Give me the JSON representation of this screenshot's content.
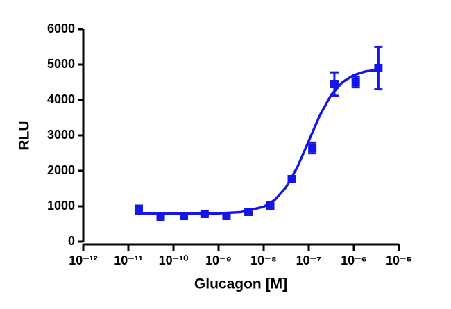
{
  "chart_data": {
    "type": "scatter",
    "x_label": "Glucagon [M]",
    "y_label": "RLU",
    "xscale": "log",
    "xlim": [
      1e-12,
      1e-05
    ],
    "xticks": [
      {
        "value": 1e-12,
        "label": "10⁻¹²"
      },
      {
        "value": 1e-11,
        "label": "10⁻¹¹"
      },
      {
        "value": 1e-10,
        "label": "10⁻¹⁰"
      },
      {
        "value": 1e-09,
        "label": "10⁻⁹"
      },
      {
        "value": 1e-08,
        "label": "10⁻⁸"
      },
      {
        "value": 1e-07,
        "label": "10⁻⁷"
      },
      {
        "value": 1e-06,
        "label": "10⁻⁶"
      },
      {
        "value": 1e-05,
        "label": "10⁻⁵"
      }
    ],
    "ylim": [
      0,
      6000
    ],
    "yticks": [
      0,
      1000,
      2000,
      3000,
      4000,
      5000,
      6000
    ],
    "series": [
      {
        "color": "#1515e6",
        "marker": "square",
        "x": [
          1.7e-11,
          5.2e-11,
          1.7e-10,
          4.9e-10,
          1.5e-09,
          4.6e-09,
          1.4e-08,
          4.2e-08,
          1.2e-07,
          3.7e-07,
          1.1e-06,
          3.5e-06
        ],
        "values": [
          900,
          706,
          725,
          784,
          725,
          843,
          1020,
          1765,
          2647,
          4451,
          4510,
          4902
        ],
        "errors": [
          120,
          40,
          70,
          30,
          30,
          30,
          30,
          40,
          150,
          330,
          150,
          600
        ]
      },
      {
        "color": "#1515e6",
        "marker": "line",
        "x": [
          1.7e-11,
          1e-10,
          1e-09,
          3.16e-09,
          1e-08,
          1.78e-08,
          3.16e-08,
          5.62e-08,
          1e-07,
          1.78e-07,
          3.16e-07,
          5.62e-07,
          1e-06,
          1.78e-06,
          3.5e-06
        ],
        "values": [
          790,
          791,
          800,
          836,
          986,
          1184,
          1541,
          2111,
          2845,
          3580,
          4148,
          4506,
          4704,
          4805,
          4855
        ]
      }
    ]
  }
}
